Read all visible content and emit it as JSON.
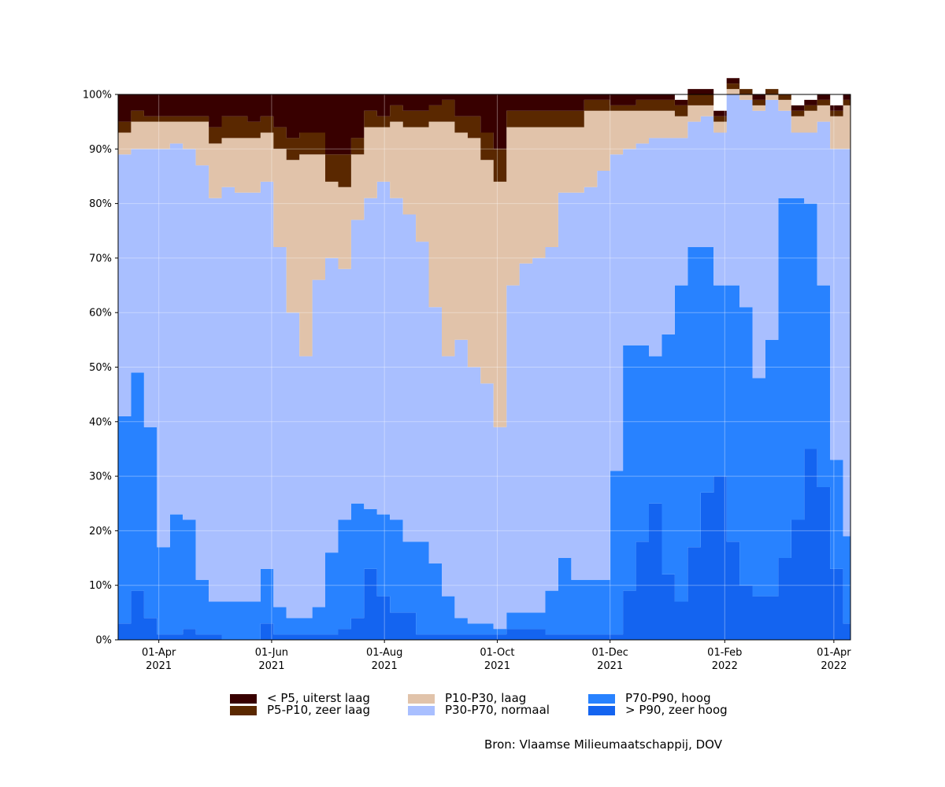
{
  "chart_data": {
    "type": "area",
    "stacked": true,
    "normalized_percent": true,
    "x_kind": "date",
    "x": [
      "2021-03-10",
      "2021-03-17",
      "2021-03-24",
      "2021-03-31",
      "2021-04-07",
      "2021-04-14",
      "2021-04-21",
      "2021-04-28",
      "2021-05-05",
      "2021-05-12",
      "2021-05-19",
      "2021-05-26",
      "2021-06-02",
      "2021-06-09",
      "2021-06-16",
      "2021-06-23",
      "2021-06-30",
      "2021-07-07",
      "2021-07-14",
      "2021-07-21",
      "2021-07-28",
      "2021-08-04",
      "2021-08-11",
      "2021-08-18",
      "2021-08-25",
      "2021-09-01",
      "2021-09-08",
      "2021-09-15",
      "2021-09-22",
      "2021-09-29",
      "2021-10-06",
      "2021-10-13",
      "2021-10-20",
      "2021-10-27",
      "2021-11-03",
      "2021-11-10",
      "2021-11-17",
      "2021-11-24",
      "2021-12-01",
      "2021-12-08",
      "2021-12-15",
      "2021-12-22",
      "2021-12-29",
      "2022-01-05",
      "2022-01-12",
      "2022-01-19",
      "2022-01-26",
      "2022-02-02",
      "2022-02-09",
      "2022-02-16",
      "2022-02-23",
      "2022-03-02",
      "2022-03-09",
      "2022-03-16",
      "2022-03-23",
      "2022-03-30",
      "2022-04-06",
      "2022-04-10"
    ],
    "series": [
      {
        "name": "> P90, zeer hoog",
        "color": "#1464f0",
        "values": [
          3,
          9,
          4,
          1,
          1,
          2,
          1,
          1,
          0,
          0,
          0,
          3,
          1,
          1,
          1,
          1,
          1,
          2,
          4,
          13,
          8,
          5,
          5,
          1,
          1,
          1,
          1,
          1,
          1,
          1,
          2,
          2,
          2,
          1,
          1,
          1,
          1,
          1,
          1,
          9,
          18,
          25,
          12,
          7,
          17,
          27,
          30,
          18,
          10,
          8,
          8,
          15,
          22,
          35,
          28,
          13,
          3,
          3
        ]
      },
      {
        "name": "P70-P90, hoog",
        "color": "#2882ff",
        "values": [
          38,
          40,
          35,
          16,
          22,
          20,
          10,
          6,
          7,
          7,
          7,
          10,
          5,
          3,
          3,
          5,
          15,
          20,
          21,
          11,
          15,
          17,
          13,
          17,
          13,
          7,
          3,
          2,
          2,
          1,
          3,
          3,
          3,
          8,
          14,
          10,
          10,
          10,
          30,
          45,
          36,
          27,
          44,
          58,
          55,
          45,
          35,
          47,
          51,
          40,
          47,
          66,
          59,
          45,
          37,
          20,
          16,
          19
        ]
      },
      {
        "name": "P30-P70, normaal",
        "color": "#a9bfff",
        "values": [
          48,
          41,
          51,
          73,
          68,
          68,
          76,
          74,
          76,
          75,
          75,
          71,
          66,
          56,
          48,
          60,
          54,
          46,
          52,
          57,
          61,
          59,
          60,
          55,
          47,
          44,
          51,
          47,
          44,
          37,
          60,
          64,
          65,
          63,
          67,
          71,
          72,
          75,
          58,
          36,
          37,
          40,
          36,
          27,
          23,
          24,
          28,
          35,
          38,
          49,
          44,
          16,
          12,
          13,
          30,
          57,
          71,
          70
        ]
      },
      {
        "name": "P10-P30, laag",
        "color": "#e1c3aa",
        "values": [
          4,
          5,
          5,
          5,
          4,
          5,
          8,
          10,
          9,
          10,
          10,
          9,
          18,
          28,
          37,
          23,
          14,
          15,
          12,
          13,
          10,
          14,
          16,
          21,
          34,
          43,
          38,
          42,
          41,
          45,
          29,
          25,
          24,
          22,
          12,
          12,
          14,
          11,
          8,
          7,
          6,
          5,
          5,
          4,
          3,
          2,
          2,
          1,
          1,
          1,
          1,
          2,
          3,
          4,
          3,
          6,
          8,
          6
        ]
      },
      {
        "name": "P5-P10, zeer laag",
        "color": "#5a2800",
        "values": [
          2,
          2,
          1,
          1,
          1,
          1,
          1,
          3,
          4,
          4,
          3,
          3,
          4,
          4,
          4,
          4,
          5,
          6,
          3,
          3,
          2,
          3,
          3,
          3,
          3,
          4,
          3,
          4,
          5,
          6,
          3,
          3,
          3,
          3,
          3,
          3,
          2,
          2,
          1,
          1,
          2,
          2,
          2,
          2,
          2,
          2,
          1,
          1,
          1,
          1,
          1,
          1,
          1,
          1,
          1,
          1,
          1,
          1
        ]
      },
      {
        "name": "< P5, uiterst laag",
        "color": "#380000",
        "values": [
          5,
          3,
          4,
          4,
          4,
          4,
          4,
          6,
          4,
          4,
          5,
          4,
          6,
          8,
          7,
          7,
          11,
          11,
          8,
          3,
          4,
          2,
          3,
          3,
          2,
          1,
          4,
          4,
          7,
          10,
          3,
          3,
          3,
          3,
          3,
          3,
          1,
          1,
          2,
          2,
          1,
          1,
          1,
          1,
          1,
          1,
          1,
          1,
          0,
          1,
          0,
          0,
          1,
          1,
          1,
          1,
          1,
          1
        ]
      }
    ],
    "ylim": [
      0,
      100
    ],
    "yticks": [
      "0%",
      "10%",
      "20%",
      "30%",
      "40%",
      "50%",
      "60%",
      "70%",
      "80%",
      "90%",
      "100%"
    ],
    "xticks": [
      {
        "date": "2021-04-01",
        "line1": "01-Apr",
        "line2": "2021"
      },
      {
        "date": "2021-06-01",
        "line1": "01-Jun",
        "line2": "2021"
      },
      {
        "date": "2021-08-01",
        "line1": "01-Aug",
        "line2": "2021"
      },
      {
        "date": "2021-10-01",
        "line1": "01-Oct",
        "line2": "2021"
      },
      {
        "date": "2021-12-01",
        "line1": "01-Dec",
        "line2": "2021"
      },
      {
        "date": "2022-02-01",
        "line1": "01-Feb",
        "line2": "2022"
      },
      {
        "date": "2022-04-01",
        "line1": "01-Apr",
        "line2": "2022"
      }
    ],
    "xlim": [
      "2021-03-10",
      "2022-04-10"
    ],
    "grid": true,
    "legend_position": "bottom",
    "legend_order": [
      "< P5, uiterst laag",
      "P5-P10, zeer laag",
      "P10-P30, laag",
      "P30-P70, normaal",
      "P70-P90, hoog",
      "> P90, zeer hoog"
    ],
    "source": "Bron: Vlaamse Milieumaatschappij, DOV"
  }
}
